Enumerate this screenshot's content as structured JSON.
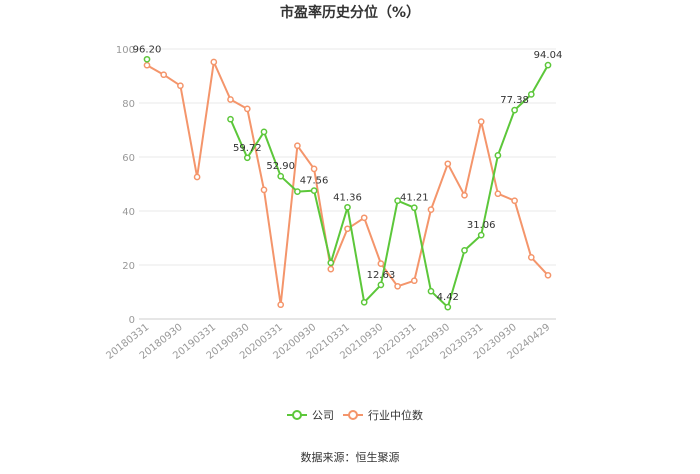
{
  "chart_data": {
    "type": "line",
    "title": "市盈率历史分位（%）",
    "source": "数据来源：恒生聚源",
    "ylim": [
      0,
      100
    ],
    "yticks": [
      0,
      20,
      40,
      60,
      80,
      100
    ],
    "ytick_labels": [
      "0",
      "20",
      "40",
      "60",
      "80",
      "100"
    ],
    "grid": true,
    "legend_position": "bottom-center",
    "x_tick_labels": [
      "20180331",
      "20180930",
      "20190331",
      "20190930",
      "20200331",
      "20200930",
      "20210331",
      "20210930",
      "20220331",
      "20220930",
      "20230331",
      "20230930",
      "20240429"
    ],
    "x_tick_index": [
      0,
      2,
      4,
      6,
      8,
      10,
      12,
      14,
      16,
      18,
      20,
      22,
      24
    ],
    "x": [
      "20180331",
      "20180630",
      "20180930",
      "20181231",
      "20190331",
      "20190630",
      "20190930",
      "20191231",
      "20200331",
      "20200630",
      "20200930",
      "20201231",
      "20210331",
      "20210630",
      "20210930",
      "20211231",
      "20220331",
      "20220630",
      "20220930",
      "20221231",
      "20230331",
      "20230630",
      "20230930",
      "20231231",
      "20240429"
    ],
    "series": [
      {
        "name": "公司",
        "color": "#5cc73a",
        "values": [
          96.2,
          null,
          null,
          null,
          null,
          74,
          59.72,
          69.3,
          52.9,
          47.2,
          47.56,
          20.8,
          41.36,
          6.2,
          12.63,
          43.8,
          41.21,
          10.3,
          4.42,
          25.4,
          31.06,
          60.6,
          77.38,
          83.2,
          94.04
        ],
        "labels": [
          {
            "i": 0,
            "text": "96.20"
          },
          {
            "i": 6,
            "text": "59.72"
          },
          {
            "i": 8,
            "text": "52.90"
          },
          {
            "i": 10,
            "text": "47.56"
          },
          {
            "i": 12,
            "text": "41.36"
          },
          {
            "i": 14,
            "text": "12.63"
          },
          {
            "i": 16,
            "text": "41.21"
          },
          {
            "i": 18,
            "text": "4.42"
          },
          {
            "i": 20,
            "text": "31.06"
          },
          {
            "i": 22,
            "text": "77.38"
          },
          {
            "i": 24,
            "text": "94.04"
          }
        ]
      },
      {
        "name": "行业中位数",
        "color": "#f4956b",
        "values": [
          94,
          90.5,
          86.4,
          52.6,
          95.2,
          81.3,
          77.8,
          47.8,
          5.3,
          64.2,
          55.6,
          18.5,
          33.4,
          37.5,
          20.5,
          12.1,
          14.2,
          40.5,
          57.5,
          45.8,
          73.1,
          46.4,
          43.8,
          22.8,
          16.2
        ]
      }
    ]
  }
}
